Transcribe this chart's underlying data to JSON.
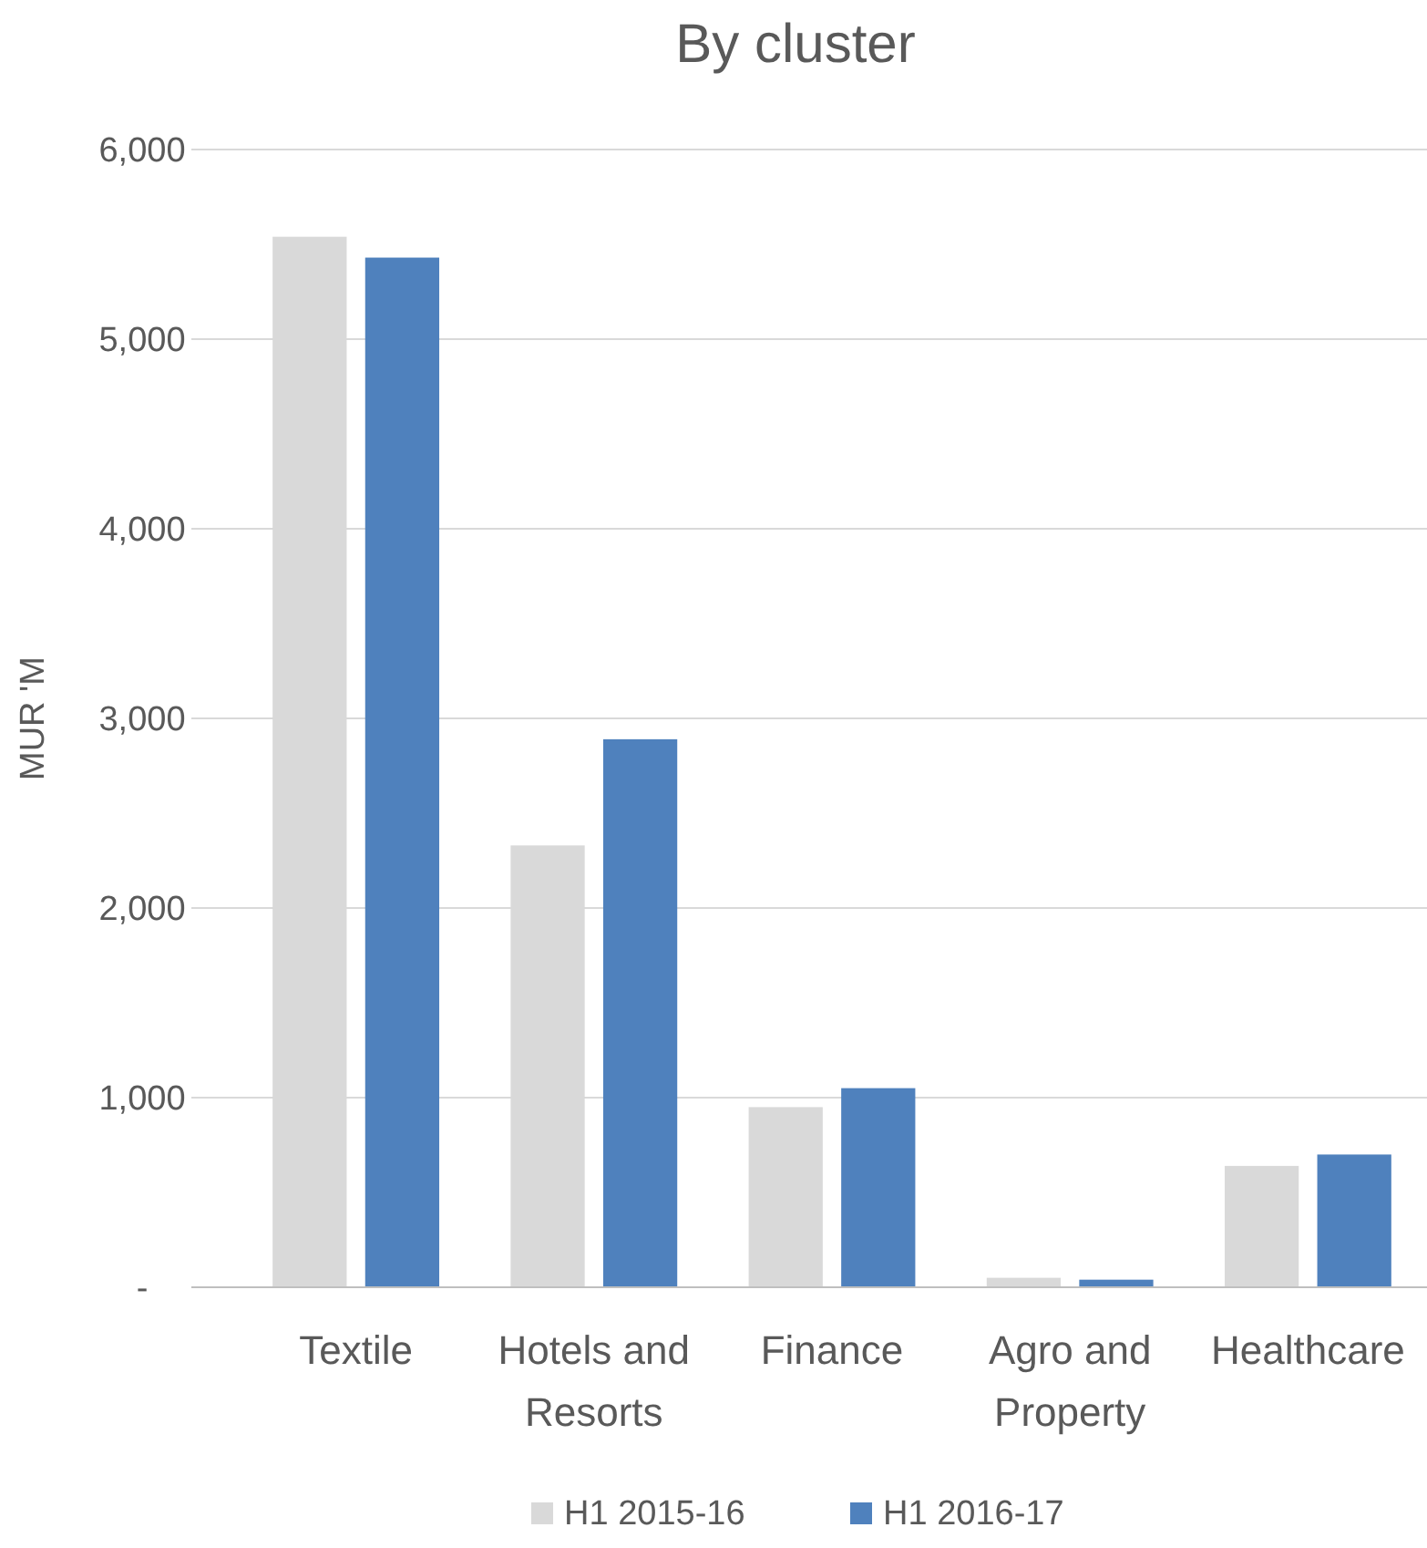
{
  "chart_data": {
    "type": "bar",
    "title": "By cluster",
    "ylabel": "MUR 'M",
    "categories": [
      "Textile",
      "Hotels and Resorts",
      "Finance",
      "Agro and Property",
      "Healthcare"
    ],
    "series": [
      {
        "name": "H1 2015-16",
        "color": "#d9d9d9",
        "values": [
          5540,
          2330,
          950,
          50,
          640
        ]
      },
      {
        "name": "H1 2016-17",
        "color": "#4f81bd",
        "values": [
          5430,
          2890,
          1050,
          40,
          700
        ]
      }
    ],
    "ylim": [
      0,
      6000
    ],
    "yticks": [
      {
        "value": 0,
        "label": "-"
      },
      {
        "value": 1000,
        "label": "1,000"
      },
      {
        "value": 2000,
        "label": "2,000"
      },
      {
        "value": 3000,
        "label": "3,000"
      },
      {
        "value": 4000,
        "label": "4,000"
      },
      {
        "value": 5000,
        "label": "5,000"
      },
      {
        "value": 6000,
        "label": "6,000"
      }
    ],
    "grid": "y",
    "legend": "bottom"
  }
}
